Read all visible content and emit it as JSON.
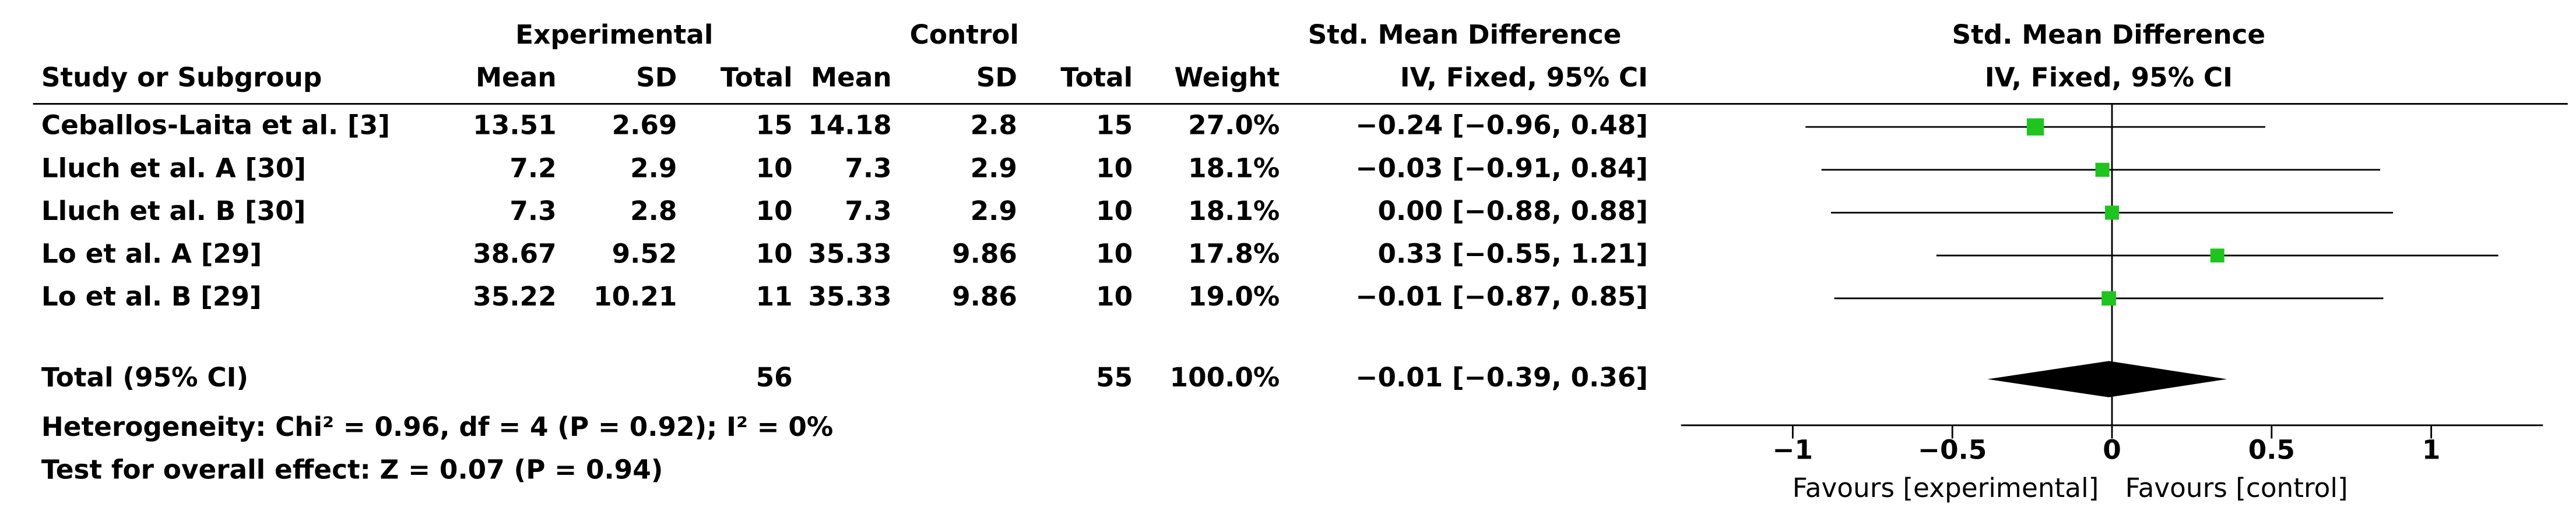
{
  "chart_data": {
    "type": "forest",
    "group_headers": {
      "experimental": "Experimental",
      "control": "Control",
      "table_effect": "Std. Mean Difference",
      "plot_effect": "Std. Mean Difference"
    },
    "columns": [
      "Study or Subgroup",
      "Mean",
      "SD",
      "Total",
      "Mean",
      "SD",
      "Total",
      "Weight",
      "IV, Fixed, 95% CI",
      "IV, Fixed, 95% CI"
    ],
    "color": "#1fc41f",
    "studies": [
      {
        "name": "Ceballos-Laita et al. [3]",
        "exp_mean": 13.51,
        "exp_sd": 2.69,
        "exp_total": 15,
        "ctrl_mean": 14.18,
        "ctrl_sd": 2.8,
        "ctrl_total": 15,
        "weight": 27.0,
        "weight_label": "27.0%",
        "smd": -0.24,
        "ci_low": -0.96,
        "ci_high": 0.48,
        "ci_label": "−0.24 [−0.96, 0.48]"
      },
      {
        "name": "Lluch et al. A [30]",
        "exp_mean": 7.2,
        "exp_sd": 2.9,
        "exp_total": 10,
        "ctrl_mean": 7.3,
        "ctrl_sd": 2.9,
        "ctrl_total": 10,
        "weight": 18.1,
        "weight_label": "18.1%",
        "smd": -0.03,
        "ci_low": -0.91,
        "ci_high": 0.84,
        "ci_label": "−0.03 [−0.91, 0.84]"
      },
      {
        "name": "Lluch et al. B [30]",
        "exp_mean": 7.3,
        "exp_sd": 2.8,
        "exp_total": 10,
        "ctrl_mean": 7.3,
        "ctrl_sd": 2.9,
        "ctrl_total": 10,
        "weight": 18.1,
        "weight_label": "18.1%",
        "smd": 0.0,
        "ci_low": -0.88,
        "ci_high": 0.88,
        "ci_label": "0.00 [−0.88, 0.88]"
      },
      {
        "name": "Lo et al. A [29]",
        "exp_mean": 38.67,
        "exp_sd": 9.52,
        "exp_total": 10,
        "ctrl_mean": 35.33,
        "ctrl_sd": 9.86,
        "ctrl_total": 10,
        "weight": 17.8,
        "weight_label": "17.8%",
        "smd": 0.33,
        "ci_low": -0.55,
        "ci_high": 1.21,
        "ci_label": "0.33 [−0.55, 1.21]"
      },
      {
        "name": "Lo et al. B [29]",
        "exp_mean": 35.22,
        "exp_sd": 10.21,
        "exp_total": 11,
        "ctrl_mean": 35.33,
        "ctrl_sd": 9.86,
        "ctrl_total": 10,
        "weight": 19.0,
        "weight_label": "19.0%",
        "smd": -0.01,
        "ci_low": -0.87,
        "ci_high": 0.85,
        "ci_label": "−0.01 [−0.87, 0.85]"
      }
    ],
    "total": {
      "name": "Total (95% CI)",
      "exp_total": 56,
      "ctrl_total": 55,
      "weight": 100.0,
      "weight_label": "100.0%",
      "smd": -0.01,
      "ci_low": -0.39,
      "ci_high": 0.36,
      "ci_label": "−0.01 [−0.39, 0.36]"
    },
    "heterogeneity": "Heterogeneity: Chi² = 0.96, df = 4 (P = 0.92); I² = 0%",
    "overall_effect": "Test for overall effect: Z = 0.07 (P = 0.94)",
    "xlim": [
      -1.35,
      1.35
    ],
    "xticks": [
      {
        "value": -1,
        "label": "−1"
      },
      {
        "value": -0.5,
        "label": "−0.5"
      },
      0,
      0.5,
      1
    ],
    "x_label_left": "Favours [experimental]",
    "x_label_right": "Favours [control]"
  }
}
